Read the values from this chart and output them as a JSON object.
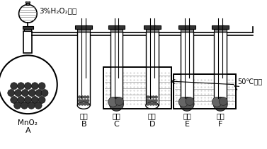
{
  "bg_color": "#ffffff",
  "lc": "#000000",
  "funnel_label": "3%H₂O₂溶液",
  "flask_label": "MnO₂",
  "flask_letter": "A",
  "tube_labels": [
    "红磷",
    "白磷",
    "红磷",
    "白磷",
    "白磷"
  ],
  "tube_letters": [
    "B",
    "C",
    "D",
    "E",
    "F"
  ],
  "water_label": "50℃的水",
  "fig_width": 3.77,
  "fig_height": 2.11
}
